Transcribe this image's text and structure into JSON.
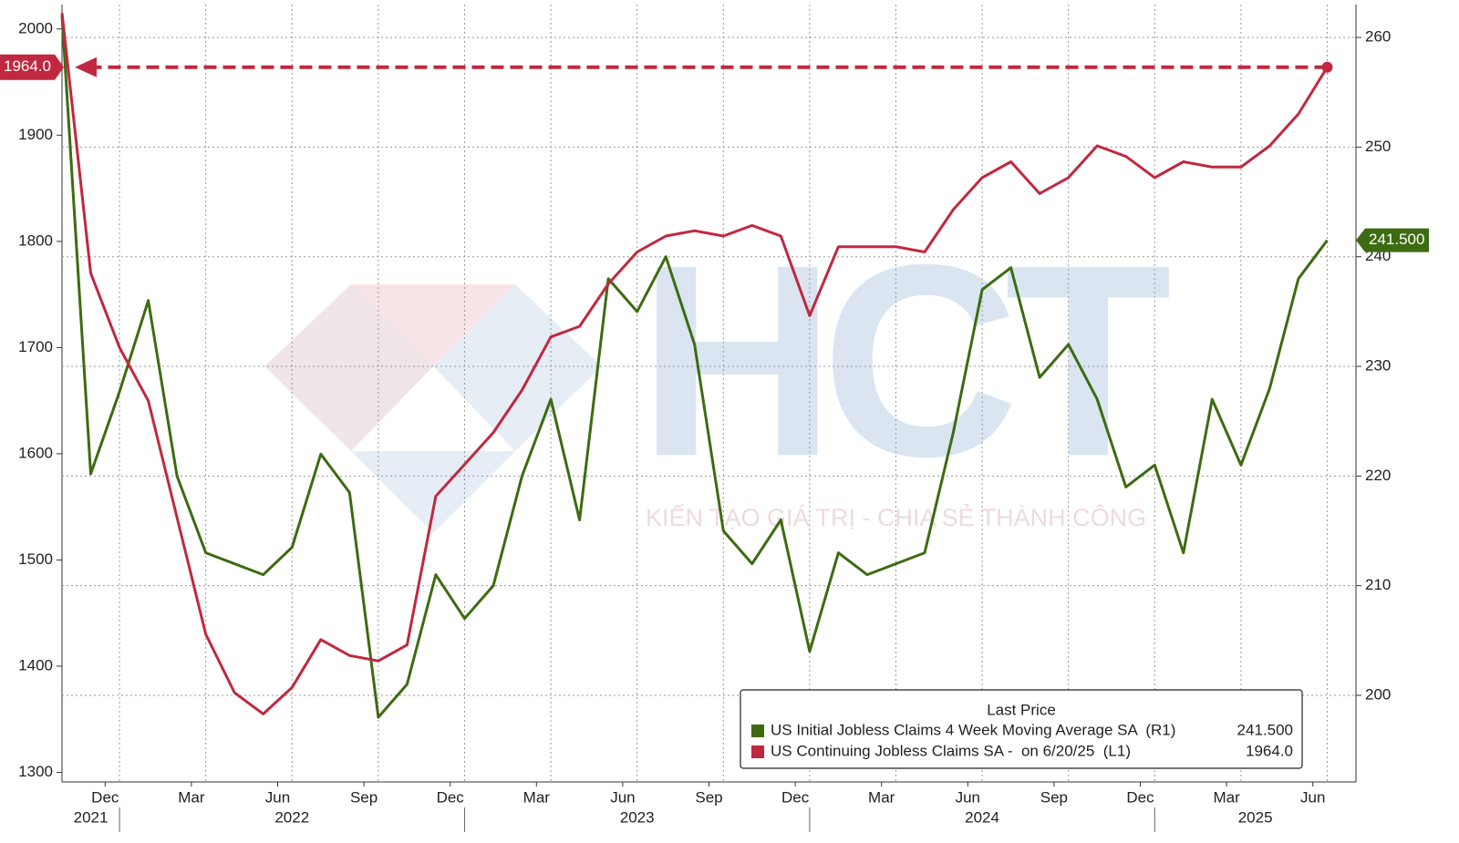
{
  "chart_data": {
    "type": "line",
    "x": [
      "2021-11",
      "2021-12",
      "2022-01",
      "2022-02",
      "2022-03",
      "2022-04",
      "2022-05",
      "2022-06",
      "2022-07",
      "2022-08",
      "2022-09",
      "2022-10",
      "2022-11",
      "2022-12",
      "2023-01",
      "2023-02",
      "2023-03",
      "2023-04",
      "2023-05",
      "2023-06",
      "2023-07",
      "2023-08",
      "2023-09",
      "2023-10",
      "2023-11",
      "2023-12",
      "2024-01",
      "2024-02",
      "2024-03",
      "2024-04",
      "2024-05",
      "2024-06",
      "2024-07",
      "2024-08",
      "2024-09",
      "2024-10",
      "2024-11",
      "2024-12",
      "2025-01",
      "2025-02",
      "2025-03",
      "2025-04",
      "2025-05",
      "2025-06",
      "2025-07"
    ],
    "xlim": [
      "2021-11",
      "2025-08"
    ],
    "xticks": [
      {
        "value": "2021-12",
        "label": "Dec"
      },
      {
        "value": "2022-03",
        "label": "Mar"
      },
      {
        "value": "2022-06",
        "label": "Jun"
      },
      {
        "value": "2022-09",
        "label": "Sep"
      },
      {
        "value": "2022-12",
        "label": "Dec"
      },
      {
        "value": "2023-03",
        "label": "Mar"
      },
      {
        "value": "2023-06",
        "label": "Jun"
      },
      {
        "value": "2023-09",
        "label": "Sep"
      },
      {
        "value": "2023-12",
        "label": "Dec"
      },
      {
        "value": "2024-03",
        "label": "Mar"
      },
      {
        "value": "2024-06",
        "label": "Jun"
      },
      {
        "value": "2024-09",
        "label": "Sep"
      },
      {
        "value": "2024-12",
        "label": "Dec"
      },
      {
        "value": "2025-03",
        "label": "Mar"
      },
      {
        "value": "2025-06",
        "label": "Jun"
      }
    ],
    "x_years": [
      "2021",
      "2022",
      "2023",
      "2024",
      "2025"
    ],
    "ylim": [
      1291,
      2023
    ],
    "yticks": [
      1300,
      1400,
      1500,
      1600,
      1700,
      1800,
      1900,
      2000
    ],
    "y2lim": [
      192.1,
      263
    ],
    "y2ticks": [
      200,
      210,
      220,
      230,
      240,
      250,
      260
    ],
    "grid": true,
    "legend_title": "Last Price",
    "series": [
      {
        "name": "US Initial Jobless Claims 4 Week Moving Average SA  (R1)",
        "color": "#3d6b12",
        "axis": "y2",
        "values": [
          262,
          220.2,
          227.7,
          236,
          220,
          213,
          212,
          211,
          213.5,
          222,
          218.5,
          198,
          201,
          211,
          207,
          210,
          220,
          227,
          216,
          238,
          235,
          240,
          232,
          215,
          212,
          216,
          204,
          213,
          211,
          212,
          213,
          224,
          237,
          239,
          229,
          232,
          227,
          219,
          221,
          213,
          227,
          221,
          228,
          238,
          241.5
        ],
        "value_labels": [
          null,
          null,
          null,
          null,
          null,
          null,
          null,
          null,
          null,
          null,
          null,
          null,
          null,
          null,
          null,
          null,
          null,
          null,
          null,
          null,
          null,
          null,
          null,
          null,
          null,
          null,
          null,
          null,
          null,
          null,
          null,
          null,
          null,
          null,
          null,
          null,
          null,
          null,
          null,
          null,
          null,
          null,
          null,
          null,
          "241.500"
        ]
      },
      {
        "name": "US Continuing Jobless Claims SA -  on 6/20/25  (L1)",
        "color": "#c0283f",
        "values": [
          2015,
          1770,
          1700,
          1650,
          1540,
          1430,
          1375,
          1355,
          1380,
          1425,
          1410,
          1405,
          1420,
          1560,
          1590,
          1620,
          1660,
          1710,
          1720,
          1760,
          1790,
          1805,
          1810,
          1805,
          1815,
          1805,
          1730,
          1795,
          1795,
          1795,
          1790,
          1830,
          1860,
          1875,
          1845,
          1860,
          1890,
          1880,
          1860,
          1875,
          1870,
          1870,
          1890,
          1920,
          1964
        ],
        "value_labels": [
          null,
          null,
          null,
          null,
          null,
          null,
          null,
          null,
          null,
          null,
          null,
          null,
          null,
          null,
          null,
          null,
          null,
          null,
          null,
          null,
          null,
          null,
          null,
          null,
          null,
          null,
          null,
          null,
          null,
          null,
          null,
          null,
          null,
          null,
          null,
          null,
          null,
          null,
          null,
          null,
          null,
          null,
          null,
          null,
          "1964.0"
        ]
      }
    ]
  },
  "watermark": {
    "logo": "HCT",
    "tagline": "KIẾN TẠO GIÁ TRỊ - CHIA SẺ THÀNH CÔNG"
  }
}
